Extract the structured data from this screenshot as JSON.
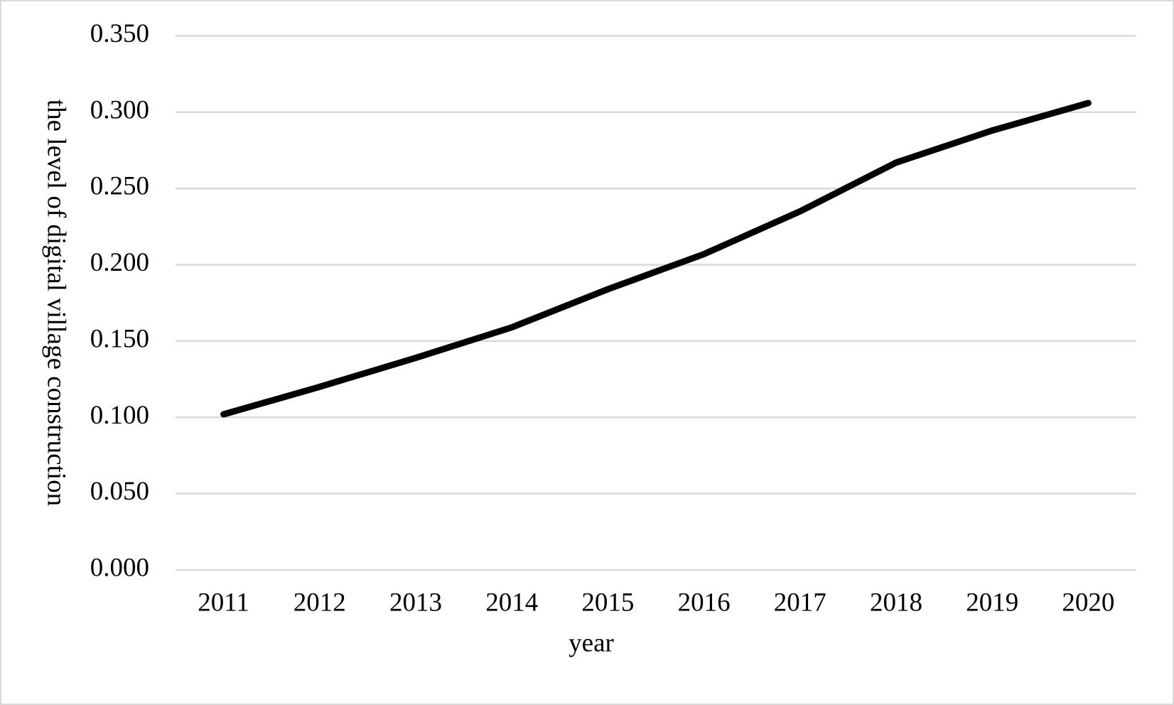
{
  "chart_data": {
    "type": "line",
    "x_label": "year",
    "y_label": "the level of digital village construction",
    "categories": [
      "2011",
      "2012",
      "2013",
      "2014",
      "2015",
      "2016",
      "2017",
      "2018",
      "2019",
      "2020"
    ],
    "series": [
      {
        "color": "#000000",
        "values": [
          0.102,
          0.12,
          0.139,
          0.159,
          0.184,
          0.207,
          0.235,
          0.267,
          0.288,
          0.306
        ]
      }
    ],
    "ylim": [
      0,
      0.35
    ],
    "yticks": [
      {
        "value": 0,
        "label": "0.000"
      },
      {
        "value": 0.05,
        "label": "0.050"
      },
      {
        "value": 0.1,
        "label": "0.100"
      },
      {
        "value": 0.15,
        "label": "0.150"
      },
      {
        "value": 0.2,
        "label": "0.200"
      },
      {
        "value": 0.25,
        "label": "0.250"
      },
      {
        "value": 0.3,
        "label": "0.300"
      },
      {
        "value": 0.35,
        "label": "0.350"
      }
    ],
    "grid": true
  }
}
